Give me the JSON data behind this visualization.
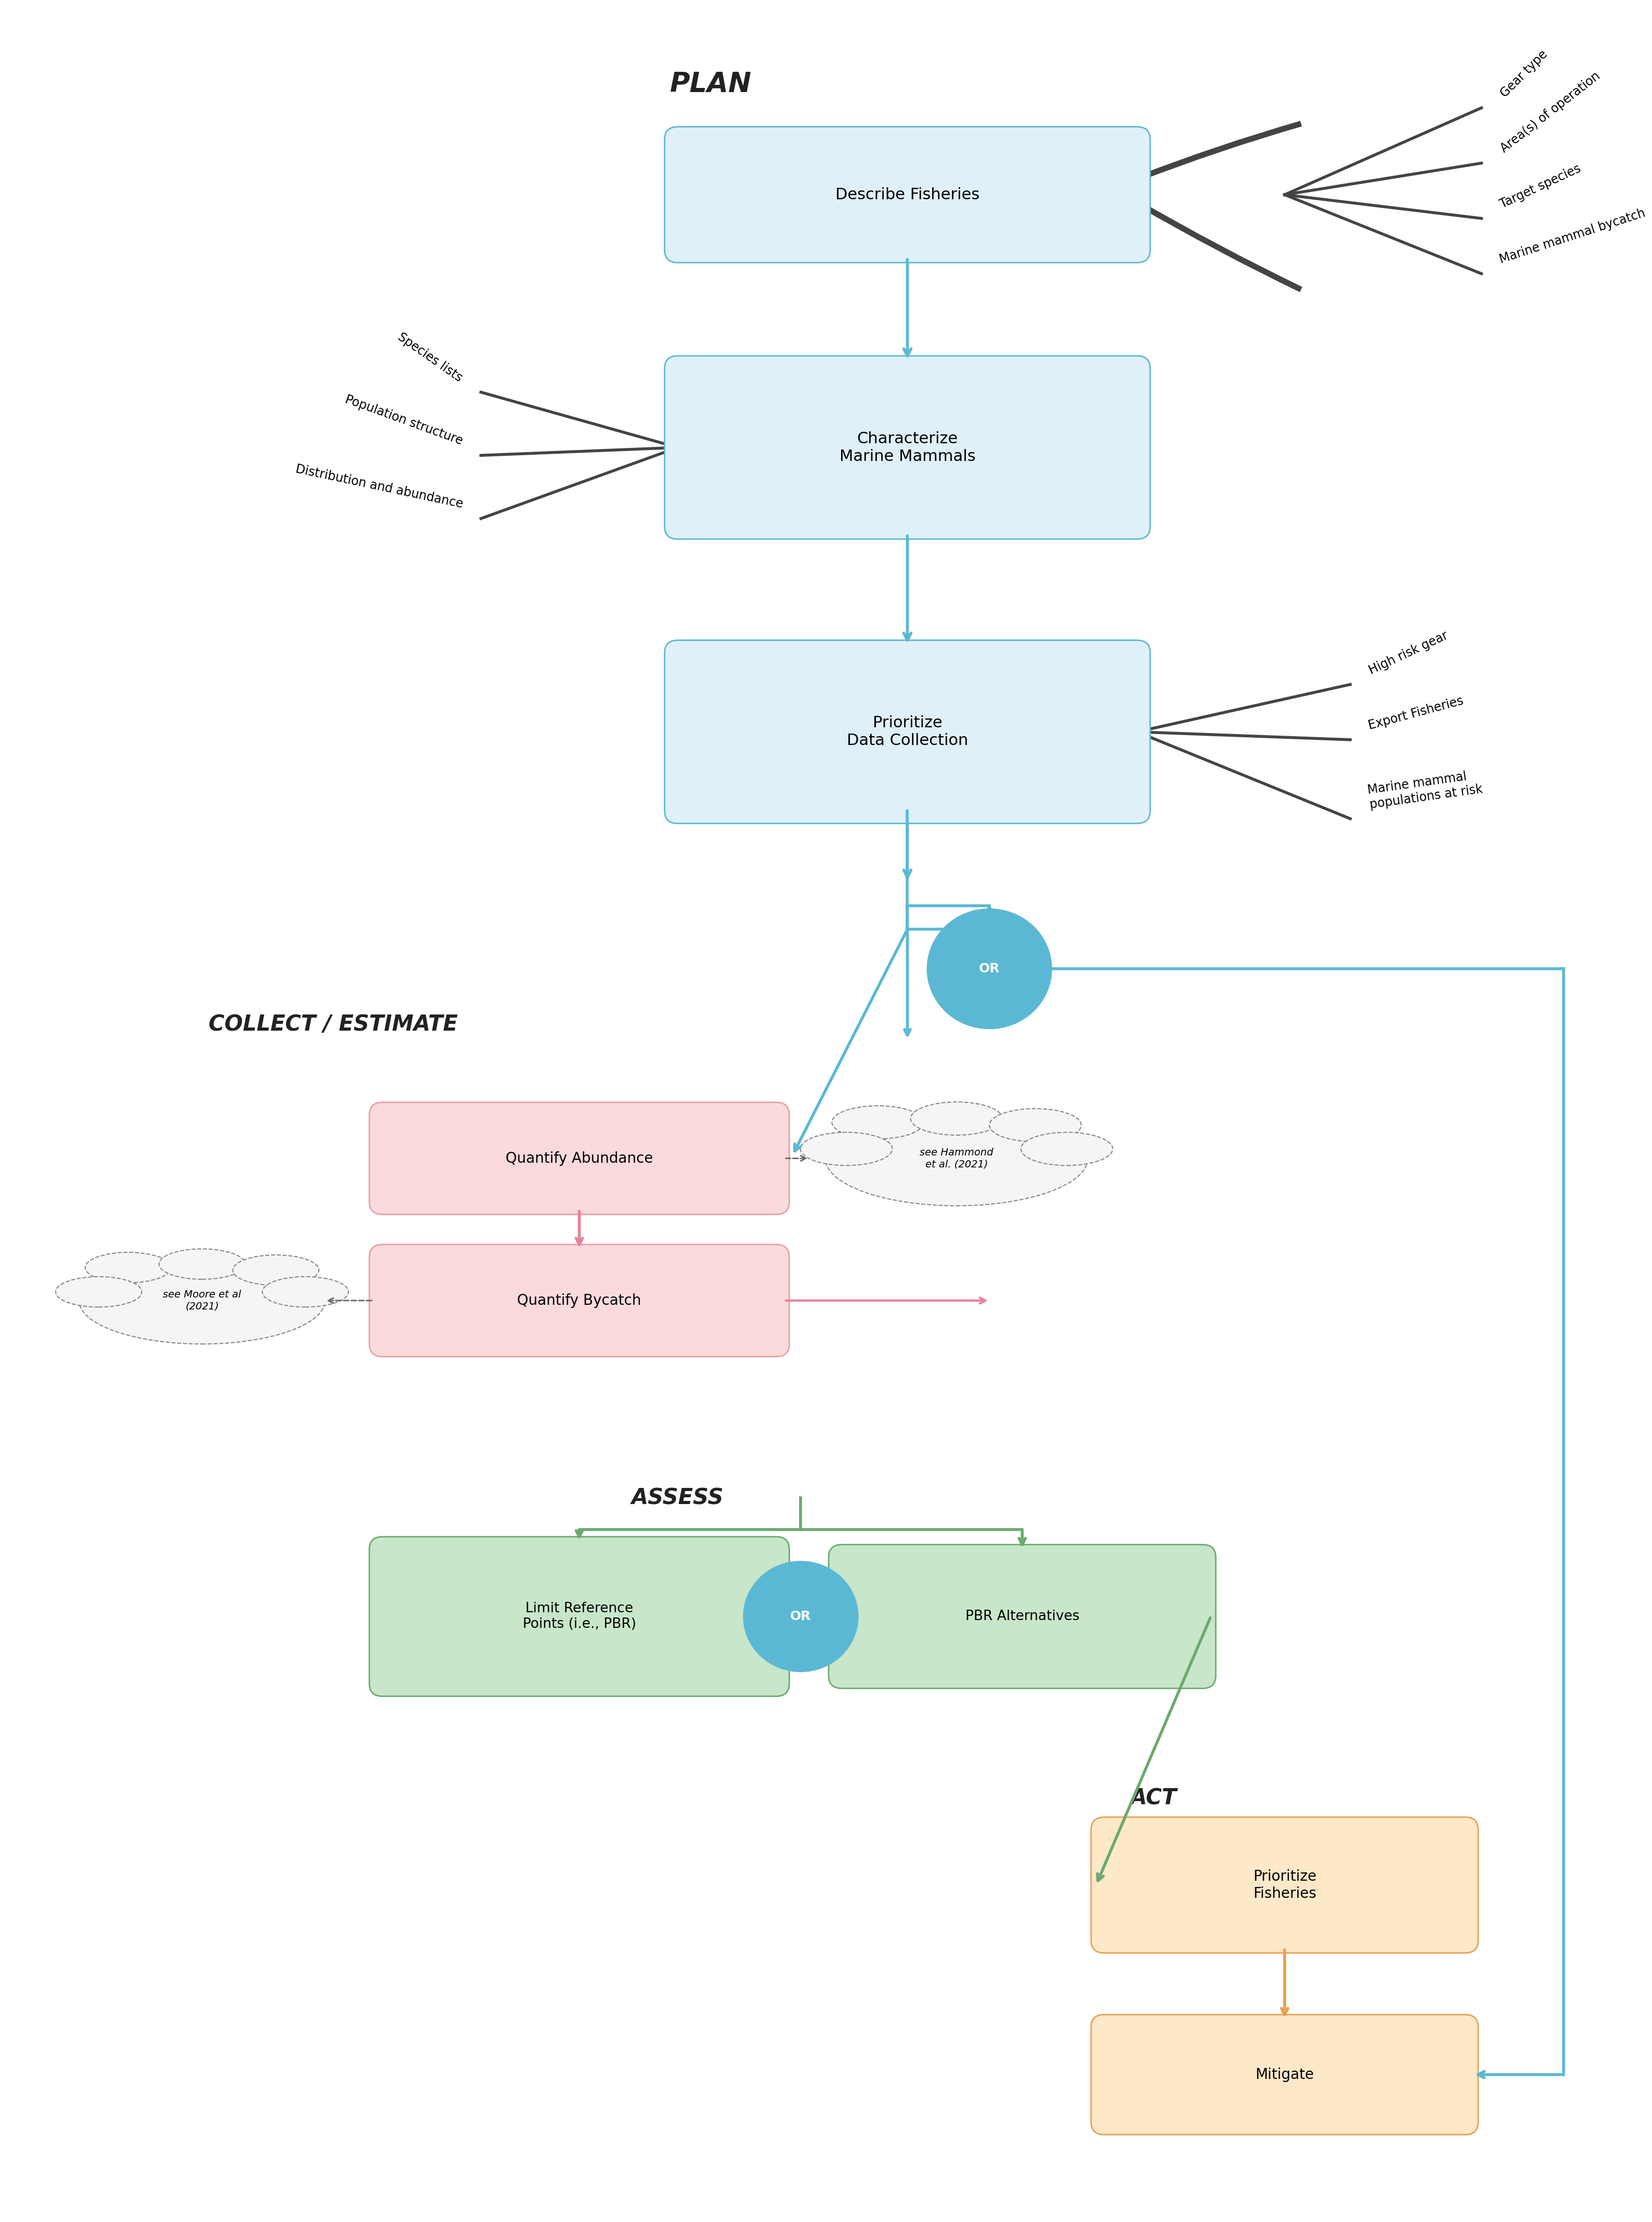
{
  "fig_width": 32.29,
  "fig_height": 42.65,
  "bg_color": "#ffffff",
  "plan_label": "PLAN",
  "collect_label": "COLLECT / ESTIMATE",
  "assess_label": "ASSESS",
  "act_label": "ACT",
  "box_blue_bg": "#dff0f8",
  "box_blue_border": "#5bb8d4",
  "box_pink_bg": "#fadadd",
  "box_pink_border": "#e8a0a8",
  "box_green_bg": "#c8e6c9",
  "box_green_border": "#6aaa6e",
  "box_orange_bg": "#fde8c8",
  "box_orange_border": "#e8a050",
  "arrow_blue": "#5bb8d4",
  "arrow_pink": "#e8829a",
  "arrow_green": "#6aaa6e",
  "arrow_orange": "#e8a050",
  "arrow_dark": "#555555",
  "or_circle_bg": "#5bb8d4",
  "or_circle_text": "#ffffff",
  "describe_text": "Describe Fisheries",
  "characterize_text": "Characterize\nMarine Mammals",
  "prioritize_text": "Prioritize\nData Collection",
  "quantify_abundance_text": "Quantify Abundance",
  "quantify_bycatch_text": "Quantify Bycatch",
  "limit_ref_text": "Limit Reference\nPoints (i.e., PBR)",
  "pbr_alt_text": "PBR Alternatives",
  "prioritize_fisheries_text": "Prioritize\nFisheries",
  "mitigate_text": "Mitigate",
  "right_labels_describe": [
    "Gear type",
    "Area(s) of operation",
    "Target species",
    "Marine mammal bycatch"
  ],
  "left_labels_characterize": [
    "Species lists",
    "Population structure",
    "Distribution and abundance"
  ],
  "right_labels_prioritize": [
    "High risk gear",
    "Export Fisheries",
    "Marine mammal\npopulations at risk"
  ],
  "cloud_text_1": "see Hammond\net al. (2021)",
  "cloud_text_2": "see Moore et al\n(2021)"
}
